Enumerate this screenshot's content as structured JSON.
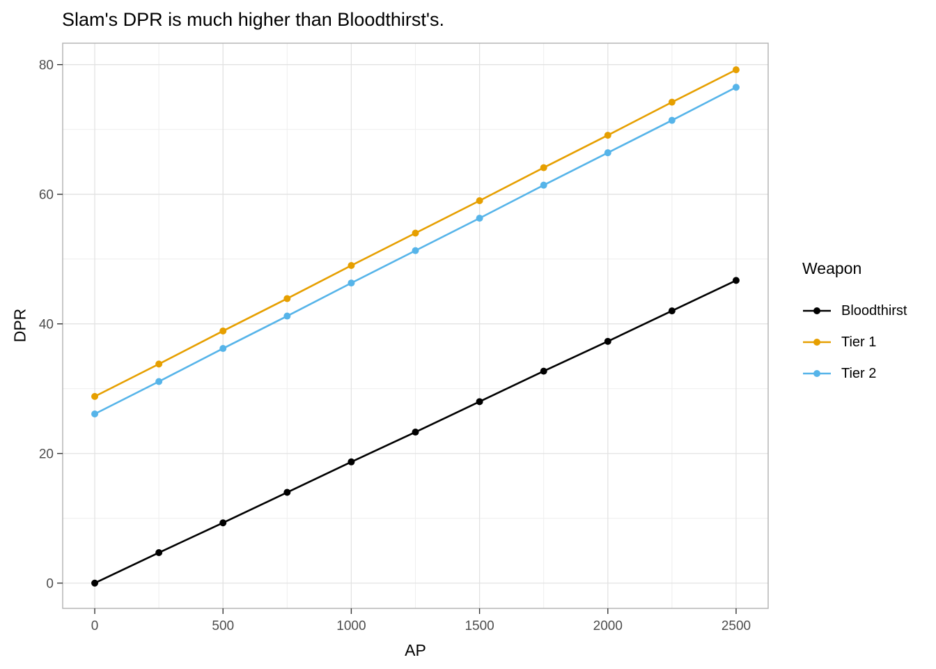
{
  "chart_data": {
    "type": "line",
    "title": "Slam's DPR is much higher than Bloodthirst's.",
    "xlabel": "AP",
    "ylabel": "DPR",
    "x": [
      0,
      250,
      500,
      750,
      1000,
      1250,
      1500,
      1750,
      2000,
      2250,
      2500
    ],
    "series": [
      {
        "name": "Bloodthirst",
        "color": "#000000",
        "values": [
          0,
          4.7,
          9.3,
          14.0,
          18.7,
          23.3,
          28.0,
          32.7,
          37.3,
          42.0,
          46.7
        ]
      },
      {
        "name": "Tier 1",
        "color": "#E69F00",
        "values": [
          28.8,
          33.8,
          38.9,
          43.9,
          49.0,
          54.0,
          59.0,
          64.1,
          69.1,
          74.2,
          79.2
        ]
      },
      {
        "name": "Tier 2",
        "color": "#56B4E9",
        "values": [
          26.1,
          31.1,
          36.2,
          41.2,
          46.3,
          51.3,
          56.3,
          61.4,
          66.4,
          71.4,
          76.5
        ]
      }
    ],
    "legend": {
      "title": "Weapon",
      "position": "right"
    },
    "axes": {
      "x_ticks": [
        0,
        500,
        1000,
        1500,
        2000,
        2500
      ],
      "x_minor": [
        250,
        750,
        1250,
        1750,
        2250
      ],
      "y_ticks": [
        0,
        20,
        40,
        60,
        80
      ],
      "y_minor": [
        10,
        30,
        50,
        70
      ],
      "xlim": [
        -125,
        2625
      ],
      "ylim": [
        -3.9,
        83.3
      ],
      "grid": true
    },
    "style": {
      "panel_border": "#b5b5b5",
      "grid_major": "#e2e2e2",
      "grid_minor": "#efefef",
      "tick_color": "#333333",
      "tick_label_color": "#4d4d4d",
      "point_radius": 5,
      "line_width": 2.6
    }
  }
}
